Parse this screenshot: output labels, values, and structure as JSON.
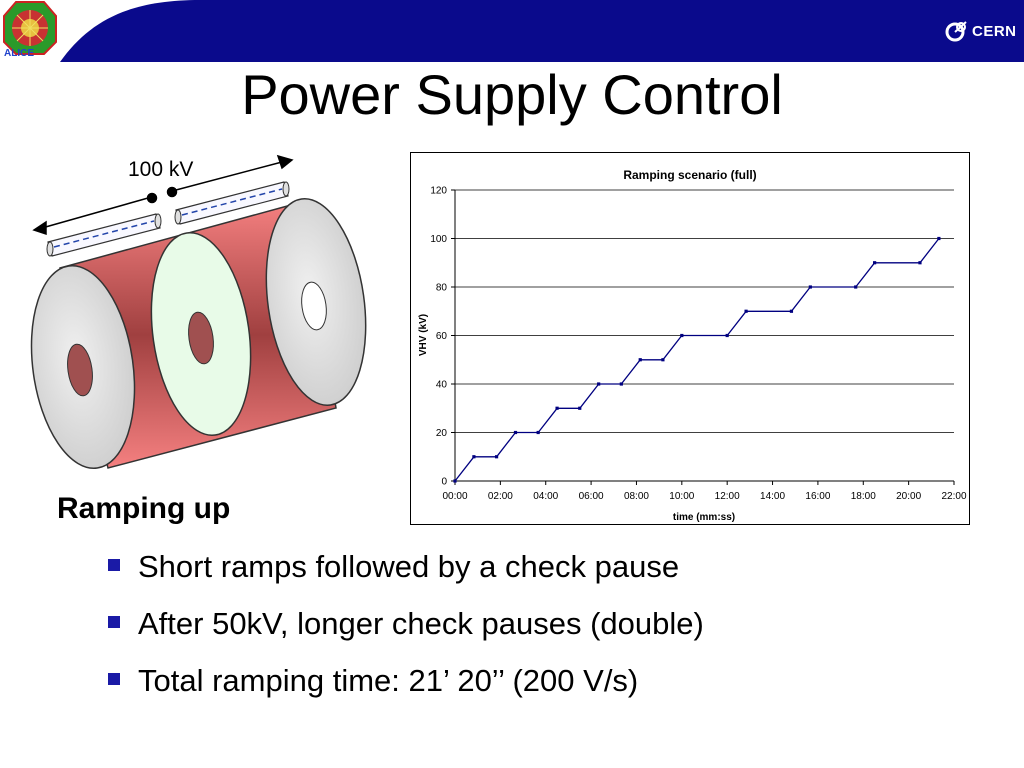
{
  "header": {
    "band_color": "#0a0a8c",
    "alice_logo_text": "ALICE",
    "cern_logo_text": "CERN",
    "cern_icon": "cern-icon"
  },
  "slide": {
    "title": "Power Supply Control",
    "detector_label": "100 kV",
    "section_heading": "Ramping up",
    "bullets": [
      "Short ramps followed by a check pause",
      "After 50kV, longer check pauses (double)",
      "Total ramping time: 21’ 20’’ (200 V/s)"
    ]
  },
  "chart_data": {
    "type": "line",
    "title": "Ramping scenario (full)",
    "xlabel": "time (mm:ss)",
    "ylabel": "VHV (kV)",
    "xlim": [
      "00:00",
      "22:00"
    ],
    "ylim": [
      0,
      120
    ],
    "x_ticks": [
      "00:00",
      "02:00",
      "04:00",
      "06:00",
      "08:00",
      "10:00",
      "12:00",
      "14:00",
      "16:00",
      "18:00",
      "20:00",
      "22:00"
    ],
    "y_ticks": [
      0,
      20,
      40,
      60,
      80,
      100,
      120
    ],
    "grid": true,
    "line_color": "#000080",
    "series": [
      {
        "x": [
          "00:00",
          "00:50",
          "01:50",
          "02:40",
          "03:40",
          "04:30",
          "05:30",
          "06:20",
          "07:20",
          "08:10",
          "09:10",
          "10:00",
          "12:00",
          "12:50",
          "14:50",
          "15:40",
          "17:40",
          "18:30",
          "20:30",
          "21:20"
        ],
        "y": [
          0,
          10,
          10,
          20,
          20,
          30,
          30,
          40,
          40,
          50,
          50,
          60,
          60,
          70,
          70,
          80,
          80,
          90,
          90,
          100
        ]
      }
    ]
  }
}
